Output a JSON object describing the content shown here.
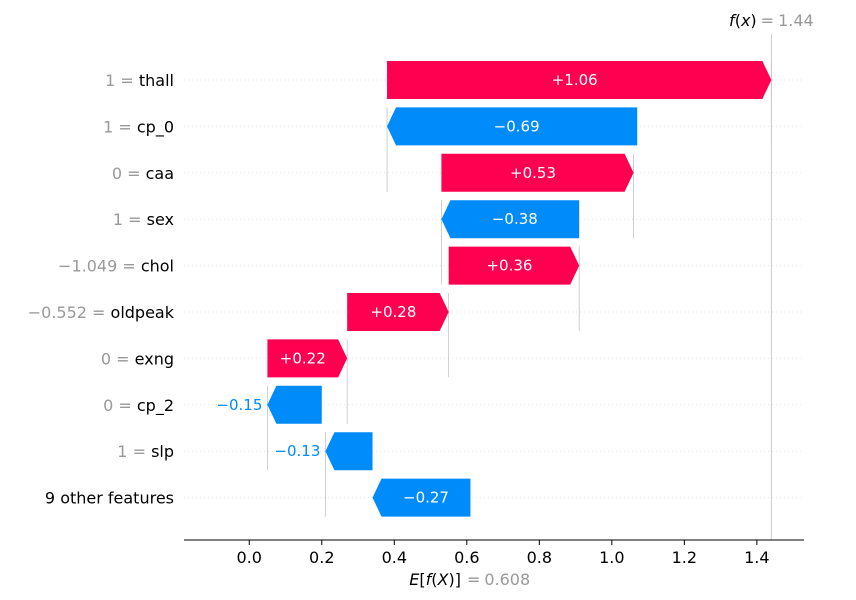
{
  "chart_data": {
    "type": "waterfall",
    "base_value": 0.608,
    "base_value_label": "0.608",
    "output_value": 1.44,
    "output_value_label": "1.44",
    "xlim": [
      -0.18,
      1.53
    ],
    "xticks": [
      0.0,
      0.2,
      0.4,
      0.6,
      0.8,
      1.0,
      1.2,
      1.4
    ],
    "xtick_labels": [
      "0.0",
      "0.2",
      "0.4",
      "0.6",
      "0.8",
      "1.0",
      "1.2",
      "1.4"
    ],
    "features": [
      {
        "value": "1",
        "name": "thall",
        "contribution": 1.06,
        "label": "+1.06",
        "start": 0.38
      },
      {
        "value": "1",
        "name": "cp_0",
        "contribution": -0.69,
        "label": "−0.69",
        "start": 1.07
      },
      {
        "value": "0",
        "name": "caa",
        "contribution": 0.53,
        "label": "+0.53",
        "start": 0.53
      },
      {
        "value": "1",
        "name": "sex",
        "contribution": -0.38,
        "label": "−0.38",
        "start": 0.91
      },
      {
        "value": "−1.049",
        "name": "chol",
        "contribution": 0.36,
        "label": "+0.36",
        "start": 0.55
      },
      {
        "value": "−0.552",
        "name": "oldpeak",
        "contribution": 0.28,
        "label": "+0.28",
        "start": 0.27
      },
      {
        "value": "0",
        "name": "exng",
        "contribution": 0.22,
        "label": "+0.22",
        "start": 0.05
      },
      {
        "value": "0",
        "name": "cp_2",
        "contribution": -0.15,
        "label": "−0.15",
        "start": 0.2
      },
      {
        "value": "1",
        "name": "slp",
        "contribution": -0.13,
        "label": "−0.13",
        "start": 0.34
      },
      {
        "value": "",
        "name": "9 other features",
        "contribution": -0.27,
        "label": "−0.27",
        "start": 0.61
      }
    ],
    "colors": {
      "positive": "#ff0051",
      "negative": "#008bfb",
      "value_gray": "#999999"
    }
  }
}
